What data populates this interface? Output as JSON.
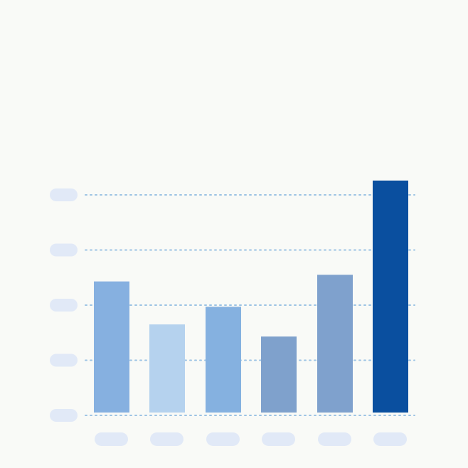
{
  "chart_data": {
    "type": "bar",
    "title": "",
    "xlabel": "",
    "ylabel": "",
    "categories": [
      "",
      "",
      "",
      "",
      "",
      ""
    ],
    "values": [
      2.43,
      1.65,
      1.97,
      1.43,
      2.55,
      4.26
    ],
    "ylim": [
      0,
      4
    ],
    "yticks": [
      0,
      1,
      2,
      3,
      4
    ],
    "grid": true,
    "gridline_style": "dotted",
    "tick_labels_shown_as_placeholders": true,
    "bar_colors": [
      "#86b0e0",
      "#b5d2ee",
      "#85b1e0",
      "#7fa1cc",
      "#7fa1cd",
      "#0a4f9f"
    ],
    "gridline_color": "#9cc3e4",
    "placeholder_color": "#e1e9f7",
    "background_color": "#f9faf7"
  }
}
